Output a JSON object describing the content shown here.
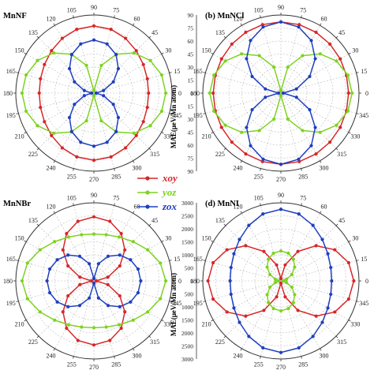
{
  "chart_data": [
    {
      "type": "polar-line",
      "panel_tag": "",
      "title": "MnNF",
      "ylabel": "",
      "angle_ticks": [
        "90",
        "105",
        "120",
        "135",
        "150",
        "165",
        "180",
        "195",
        "210",
        "225",
        "240",
        "255",
        "270",
        "285",
        "300",
        "315",
        "330",
        "345",
        "0",
        "15",
        "30",
        "45",
        "60",
        "75"
      ],
      "angle_labels_visible": [
        "105",
        "90",
        "75",
        "135",
        "150",
        "65",
        "0",
        "95",
        "345",
        "210",
        "330",
        "225",
        "300",
        "255",
        "270",
        "285"
      ],
      "radial_ticks": [],
      "rmax": 100,
      "series": [
        {
          "name": "xoy",
          "color": "#d62728",
          "shape": "ellipse",
          "rx": 70,
          "ry": 86
        },
        {
          "name": "yoz",
          "color": "#7ed321",
          "shape": "lemniscate-x",
          "a": 92,
          "b": 0.34
        },
        {
          "name": "zox",
          "color": "#1f3fbf",
          "shape": "lemniscate-y",
          "a": 68,
          "b": 0.62
        }
      ]
    },
    {
      "type": "polar-line",
      "panel_tag": "(b)",
      "title": "MnNCl",
      "ylabel": "MAE(μeV/Mn atom)",
      "angle_ticks": [
        "90",
        "105",
        "120",
        "135",
        "150",
        "165",
        "180",
        "195",
        "210",
        "225",
        "240",
        "255",
        "270",
        "285",
        "300",
        "315",
        "330",
        "345",
        "0",
        "15",
        "30",
        "45",
        "60",
        "75"
      ],
      "angle_labels_visible": [
        "105",
        "90",
        "75",
        "120",
        "135",
        "150",
        "165",
        "180",
        "195",
        "210",
        "225",
        "240",
        "255",
        "270",
        "285"
      ],
      "radial_ticks_upper": [
        "90",
        "75",
        "60",
        "45",
        "30",
        "15",
        "0"
      ],
      "radial_ticks_lower": [
        "15",
        "30",
        "45",
        "60",
        "75",
        "90"
      ],
      "rmax": 90,
      "series": [
        {
          "name": "xoy",
          "color": "#d62728",
          "shape": "ellipse",
          "rx": 78,
          "ry": 82
        },
        {
          "name": "yoz",
          "color": "#7ed321",
          "shape": "lemniscate-x",
          "a": 82,
          "b": 0.36
        },
        {
          "name": "zox",
          "color": "#1f3fbf",
          "shape": "lemniscate-y",
          "a": 82,
          "b": 0.55
        }
      ]
    },
    {
      "type": "polar-line",
      "panel_tag": "",
      "title": "MnNBr",
      "ylabel": "",
      "angle_labels_visible": [
        "105",
        "90",
        "75",
        "120",
        "135",
        "150",
        "65",
        "0",
        "95",
        "345",
        "210",
        "225",
        "240",
        "255",
        "270",
        "285"
      ],
      "radial_ticks": [],
      "rmax": 100,
      "series": [
        {
          "name": "xoy",
          "color": "#d62728",
          "shape": "lemniscate-y",
          "a": 82,
          "b": 0.55
        },
        {
          "name": "yoz",
          "color": "#7ed321",
          "shape": "ellipse",
          "rx": 92,
          "ry": 60
        },
        {
          "name": "zox",
          "color": "#1f3fbf",
          "shape": "lemniscate-x",
          "a": 60,
          "b": 0.36
        }
      ]
    },
    {
      "type": "polar-line",
      "panel_tag": "(d)",
      "title": "MnNI",
      "ylabel": "MAE(μeV/Mn atom)",
      "angle_labels_visible": [
        "105",
        "90",
        "75",
        "120",
        "135",
        "150",
        "165",
        "180",
        "195",
        "210",
        "225",
        "240",
        "255",
        "270",
        "285"
      ],
      "radial_ticks_upper": [
        "3000",
        "2500",
        "2000",
        "1500",
        "1000",
        "500",
        "0"
      ],
      "radial_ticks_lower": [
        "500",
        "1000",
        "1500",
        "2000",
        "2500",
        "3000"
      ],
      "rmax": 3000,
      "series": [
        {
          "name": "xoy",
          "color": "#d62728",
          "shape": "lemniscate-x",
          "a": 2800,
          "b": 0.55
        },
        {
          "name": "yoz",
          "color": "#7ed321",
          "shape": "lemniscate-y",
          "a": 1150,
          "b": 0.62
        },
        {
          "name": "zox",
          "color": "#1f3fbf",
          "shape": "ellipse",
          "rx": 1950,
          "ry": 2750
        }
      ]
    }
  ],
  "legend": {
    "items": [
      {
        "label": "xoy",
        "color": "#d62728"
      },
      {
        "label": "yoz",
        "color": "#7ed321"
      },
      {
        "label": "zox",
        "color": "#1f3fbf"
      }
    ]
  }
}
